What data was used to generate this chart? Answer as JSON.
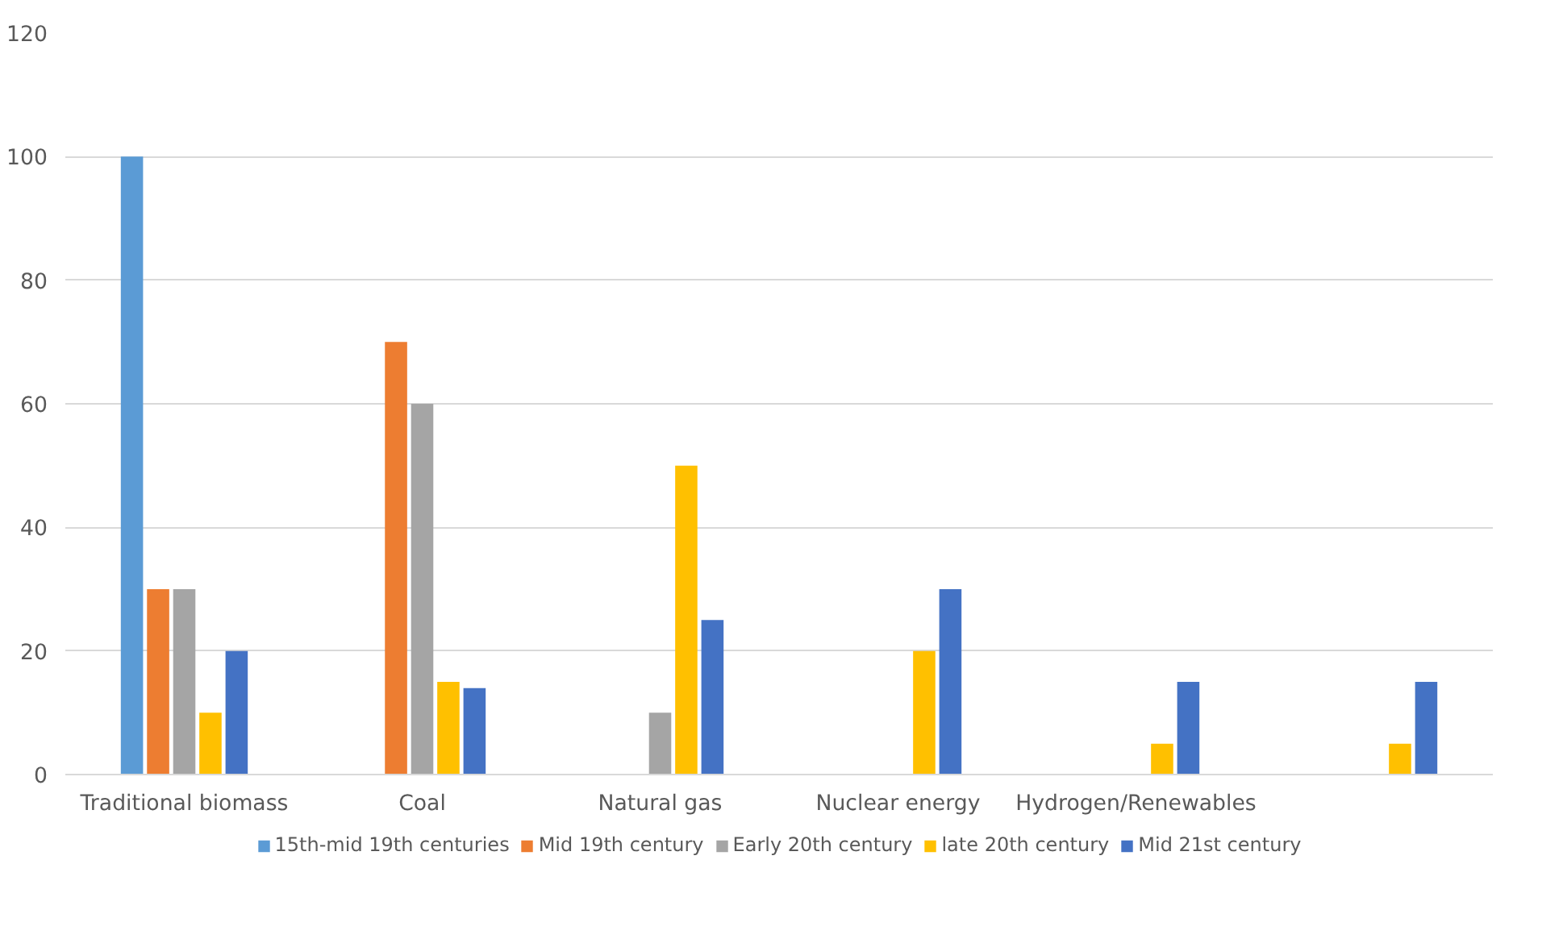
{
  "chart_data": {
    "type": "bar",
    "categories": [
      "Traditional biomass",
      "Coal",
      "Natural gas",
      "Nuclear energy",
      "Hydrogen/Renewables",
      null
    ],
    "series": [
      {
        "name": "15th-mid 19th centuries",
        "color": "#5b9bd5",
        "values": [
          100,
          null,
          null,
          null,
          null,
          null
        ]
      },
      {
        "name": "Mid 19th century",
        "color": "#ed7d31",
        "values": [
          30,
          70,
          null,
          null,
          null,
          null
        ]
      },
      {
        "name": "Early 20th century",
        "color": "#a5a5a5",
        "values": [
          30,
          60,
          10,
          null,
          null,
          null
        ]
      },
      {
        "name": "late 20th century",
        "color": "#ffc000",
        "values": [
          10,
          15,
          50,
          20,
          5,
          5
        ]
      },
      {
        "name": "Mid 21st century",
        "color": "#4472c4",
        "values": [
          20,
          14,
          25,
          30,
          15,
          15
        ]
      }
    ],
    "ylim": [
      0,
      120
    ],
    "yticks": [
      0,
      20,
      40,
      60,
      80,
      100,
      120
    ],
    "grid": "y",
    "legend": "bottom"
  }
}
